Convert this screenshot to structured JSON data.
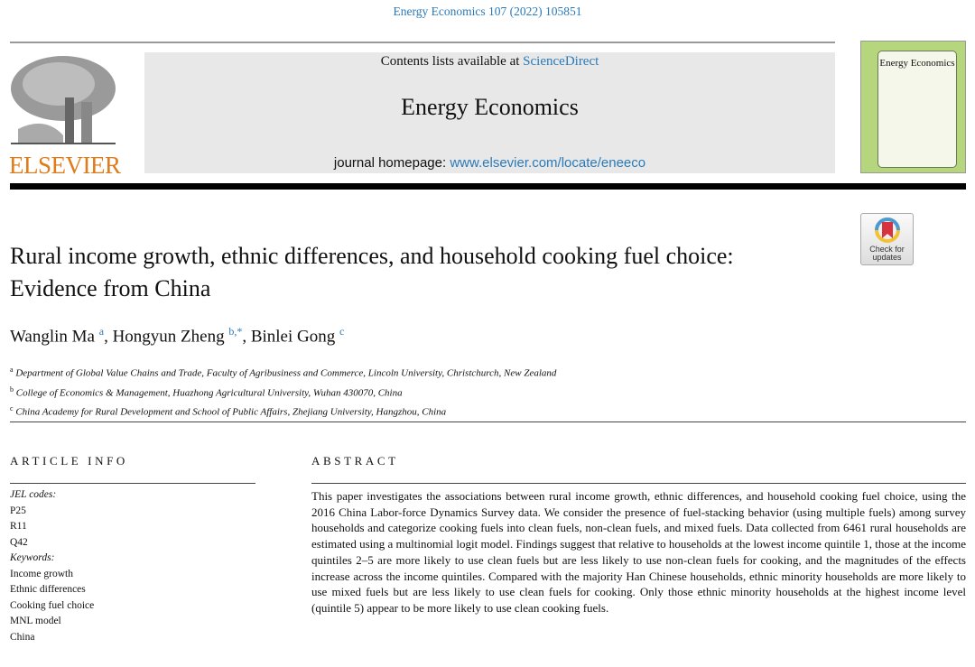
{
  "journal_ref": "Energy Economics 107 (2022) 105851",
  "header": {
    "contents_prefix": "Contents lists available at ",
    "contents_link": "ScienceDirect",
    "journal_title": "Energy Economics",
    "homepage_prefix": "journal homepage: ",
    "homepage_link": "www.elsevier.com/locate/eneeco",
    "publisher": "ELSEVIER",
    "cover_title": "Energy Economics",
    "check_updates": "Check for updates"
  },
  "article": {
    "title": "Rural income growth, ethnic differences, and household cooking fuel choice: Evidence from China",
    "authors": [
      {
        "name": "Wanglin Ma",
        "sup": "a"
      },
      {
        "name": "Hongyun Zheng",
        "sup": "b,*"
      },
      {
        "name": "Binlei Gong",
        "sup": "c"
      }
    ],
    "affiliations": [
      {
        "sup": "a",
        "text": "Department of Global Value Chains and Trade, Faculty of Agribusiness and Commerce, Lincoln University, Christchurch, New Zealand"
      },
      {
        "sup": "b",
        "text": "College of Economics & Management, Huazhong Agricultural University, Wuhan 430070, China"
      },
      {
        "sup": "c",
        "text": "China Academy for Rural Development and School of Public Affairs, Zhejiang University, Hangzhou, China"
      }
    ]
  },
  "article_info": {
    "heading": "ARTICLE INFO",
    "jel_label": "JEL codes:",
    "jel": [
      "P25",
      "R11",
      "Q42"
    ],
    "keywords_label": "Keywords:",
    "keywords": [
      "Income growth",
      "Ethnic differences",
      "Cooking fuel choice",
      "MNL model",
      "China"
    ]
  },
  "abstract": {
    "heading": "ABSTRACT",
    "text": "This paper investigates the associations between rural income growth, ethnic differences, and household cooking fuel choice, using the 2016 China Labor-force Dynamics Survey data. We consider the presence of fuel-stacking behavior (using multiple fuels) among survey households and categorize cooking fuels into clean fuels, non-clean fuels, and mixed fuels. Data collected from 6461 rural households are estimated using a multinomial logit model. Findings suggest that relative to households at the lowest income quintile 1, those at the income quintiles 2–5 are more likely to use clean fuels but are less likely to use non-clean fuels for cooking, and the magnitudes of the effects increase across the income quintiles. Compared with the majority Han Chinese households, ethnic minority households are more likely to use mixed fuels but are less likely to use clean fuels for cooking. Only those ethnic minority households at the highest income level (quintile 5) appear to be more likely to use clean cooking fuels."
  }
}
